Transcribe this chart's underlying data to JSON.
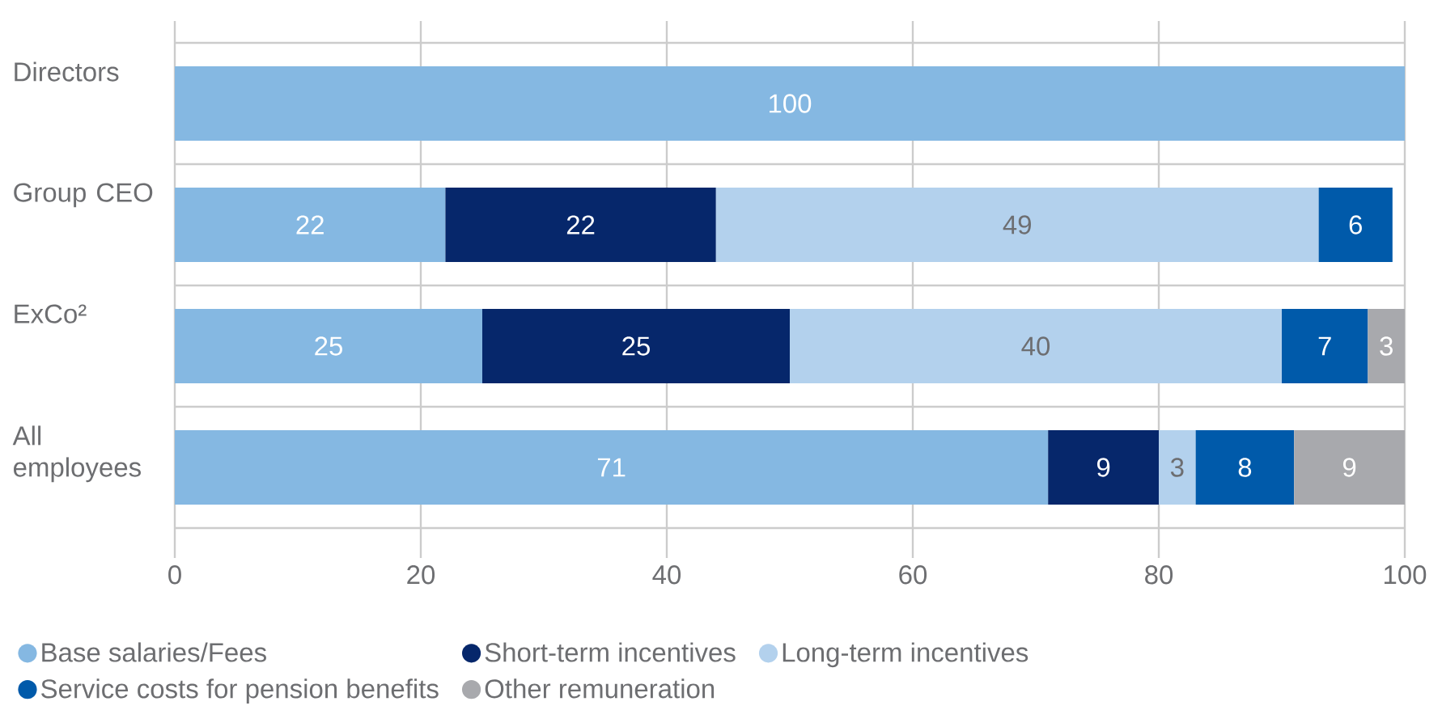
{
  "chart_data": {
    "type": "bar",
    "orientation": "horizontal",
    "stacked": true,
    "categories": [
      "Directors",
      "Group CEO",
      "ExCo²",
      "All employees"
    ],
    "series": [
      {
        "name": "Base salaries/Fees",
        "color": "#85b8e2",
        "values": [
          100,
          22,
          25,
          71
        ]
      },
      {
        "name": "Short-term incentives",
        "color": "#06276b",
        "values": [
          null,
          22,
          25,
          9
        ]
      },
      {
        "name": "Long-term incentives",
        "color": "#b3d1ed",
        "values": [
          null,
          49,
          40,
          3
        ]
      },
      {
        "name": "Service costs for pension benefits",
        "color": "#005aaa",
        "values": [
          null,
          6,
          7,
          8
        ]
      },
      {
        "name": "Other remuneration",
        "color": "#a8a9ad",
        "values": [
          null,
          null,
          3,
          9
        ]
      }
    ],
    "xlim": [
      0,
      100
    ],
    "xticks": [
      0,
      20,
      40,
      60,
      80,
      100
    ],
    "grid": true,
    "legend": "bottom",
    "data_labels": true
  }
}
